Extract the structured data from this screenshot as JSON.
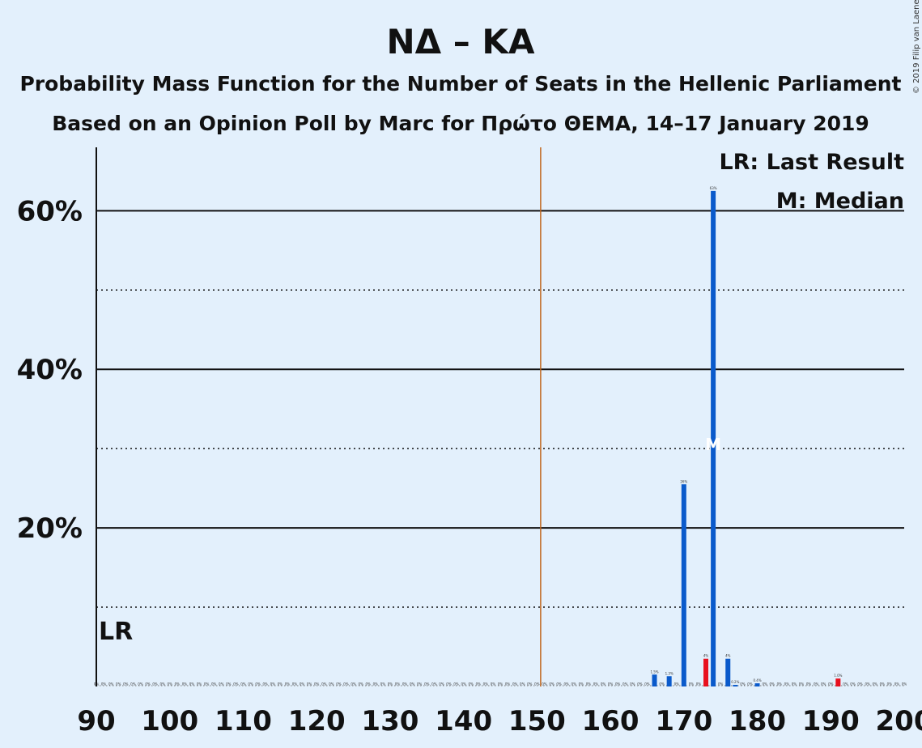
{
  "chart_data": {
    "type": "bar",
    "title": "ΝΔ – ΚΑ",
    "subtitle1": "Probability Mass Function for the Number of Seats in the Hellenic Parliament",
    "subtitle2": "Based on an Opinion Poll by Marc for Πρώτο ΘΕΜΑ, 14–17 January 2019",
    "copyright": "© 2019 Filip van Laenen",
    "legend": {
      "lr": "LR: Last Result",
      "median": "M: Median",
      "lr_marker": "LR",
      "median_marker": "M",
      "placement": "top-right"
    },
    "xlim": [
      90,
      200
    ],
    "ylim": [
      0,
      68
    ],
    "x_ticks": [
      "90",
      "100",
      "110",
      "120",
      "130",
      "140",
      "150",
      "160",
      "170",
      "180",
      "190",
      "200"
    ],
    "y_ticks": [
      {
        "value": 20,
        "label": "20%"
      },
      {
        "value": 40,
        "label": "40%"
      },
      {
        "value": 60,
        "label": "60%"
      }
    ],
    "minor_gridlines": [
      10,
      30,
      50
    ],
    "majority_line": 151,
    "last_result": 90,
    "median": 174,
    "colors": {
      "bar": "#0a5acb",
      "highlight": "#e8101e",
      "majority": "#c0651c",
      "background": "#e3f0fc"
    },
    "bars": [
      {
        "x": 166,
        "value": 1.5,
        "label": "1.5%",
        "highlight": false
      },
      {
        "x": 168,
        "value": 1.3,
        "label": "1.3%",
        "highlight": false
      },
      {
        "x": 170,
        "value": 25.5,
        "label": "26%",
        "highlight": false
      },
      {
        "x": 173,
        "value": 3.5,
        "label": "4%",
        "highlight": true
      },
      {
        "x": 174,
        "value": 62.5,
        "label": "63%",
        "highlight": false
      },
      {
        "x": 176,
        "value": 3.5,
        "label": "4%",
        "highlight": false
      },
      {
        "x": 177,
        "value": 0.2,
        "label": "0.2%",
        "highlight": false
      },
      {
        "x": 180,
        "value": 0.4,
        "label": "0.4%",
        "highlight": false
      },
      {
        "x": 191,
        "value": 1.0,
        "label": "1.0%",
        "highlight": true
      }
    ]
  }
}
